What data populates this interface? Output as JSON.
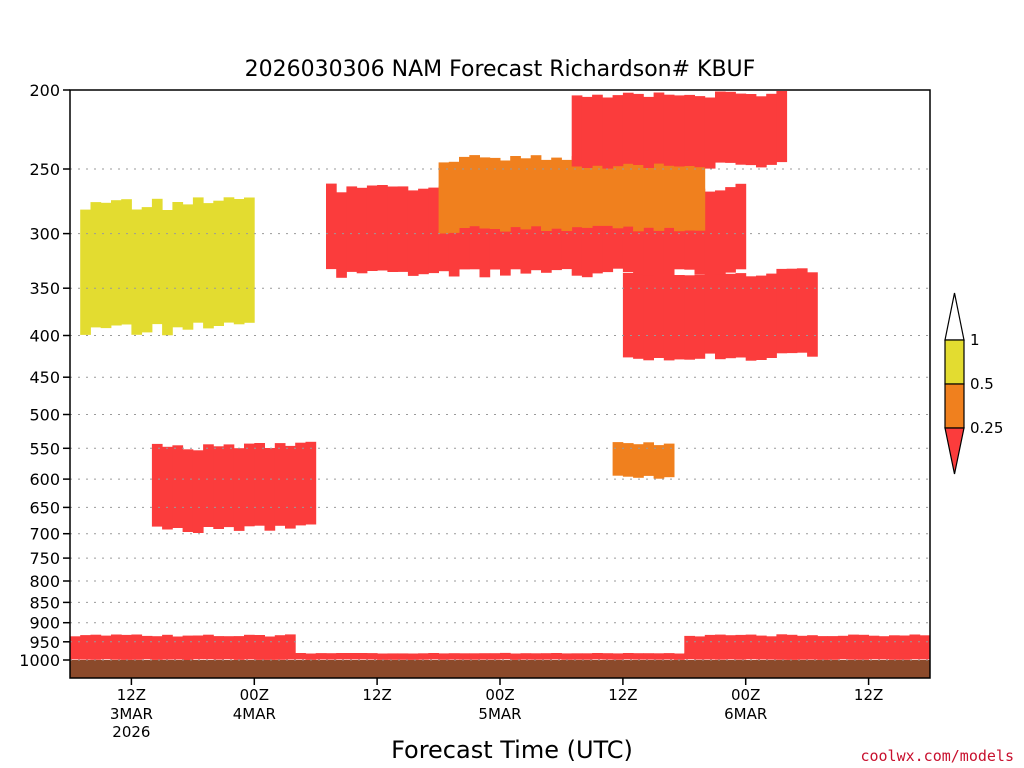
{
  "chart_data": {
    "type": "heatmap",
    "title": "2026030306 NAM Forecast Richardson# KBUF",
    "xlabel": "Forecast Time (UTC)",
    "ylabel": "",
    "y_scale": "log-pressure",
    "y_unit": "hPa",
    "ylim": [
      1000,
      200
    ],
    "y_ticks": [
      200,
      250,
      300,
      350,
      400,
      450,
      500,
      550,
      600,
      650,
      700,
      750,
      800,
      850,
      900,
      950,
      1000
    ],
    "xlim_hours": [
      0,
      84
    ],
    "x_ticks": [
      {
        "hour": 6,
        "label": "12Z",
        "sub1": "3MAR",
        "sub2": "2026"
      },
      {
        "hour": 18,
        "label": "00Z",
        "sub1": "4MAR",
        "sub2": ""
      },
      {
        "hour": 30,
        "label": "12Z",
        "sub1": "",
        "sub2": ""
      },
      {
        "hour": 42,
        "label": "00Z",
        "sub1": "5MAR",
        "sub2": ""
      },
      {
        "hour": 54,
        "label": "12Z",
        "sub1": "",
        "sub2": ""
      },
      {
        "hour": 66,
        "label": "00Z",
        "sub1": "6MAR",
        "sub2": ""
      },
      {
        "hour": 78,
        "label": "12Z",
        "sub1": "",
        "sub2": ""
      }
    ],
    "colorbar": {
      "levels": [
        "1",
        "0.5",
        "0.25"
      ],
      "bins": [
        {
          "range": "> 1",
          "color": "#ffffff"
        },
        {
          "range": "0.5 - 1",
          "color": "#e3dc30"
        },
        {
          "range": "0.25 - 0.5",
          "color": "#f0801e"
        },
        {
          "range": "< 0.25",
          "color": "#fb3c3c"
        }
      ]
    },
    "ground_color": "#8b4a2b",
    "regions": [
      {
        "name": "upper-jet-layer",
        "hours": [
          25,
          66
        ],
        "p": [
          260,
          340
        ],
        "value_bin": "< 0.25"
      },
      {
        "name": "upper-jet-fringe",
        "hours": [
          36,
          62
        ],
        "p": [
          240,
          300
        ],
        "value_bin": "0.25 - 0.5"
      },
      {
        "name": "upper-level-north",
        "hours": [
          49,
          70
        ],
        "p": [
          200,
          250
        ],
        "value_bin": "< 0.25"
      },
      {
        "name": "mid-level-east",
        "hours": [
          54,
          73
        ],
        "p": [
          330,
          430
        ],
        "value_bin": "< 0.25"
      },
      {
        "name": "upper-west-patches",
        "hours": [
          1,
          18
        ],
        "p": [
          270,
          400
        ],
        "value_bin": "0.5 - 1"
      },
      {
        "name": "mid-level-west",
        "hours": [
          8,
          24
        ],
        "p": [
          540,
          700
        ],
        "value_bin": "< 0.25"
      },
      {
        "name": "mid-level-center",
        "hours": [
          53,
          59
        ],
        "p": [
          540,
          600
        ],
        "value_bin": "0.25 - 0.5"
      },
      {
        "name": "low-level-west",
        "hours": [
          0,
          22
        ],
        "p": [
          930,
          990
        ],
        "value_bin": "< 0.25"
      },
      {
        "name": "low-level-east",
        "hours": [
          60,
          84
        ],
        "p": [
          930,
          990
        ],
        "value_bin": "< 0.25"
      },
      {
        "name": "boundary-layer",
        "hours": [
          0,
          84
        ],
        "p": [
          980,
          1000
        ],
        "value_bin": "< 0.25"
      }
    ]
  },
  "credit": "coolwx.com/models"
}
